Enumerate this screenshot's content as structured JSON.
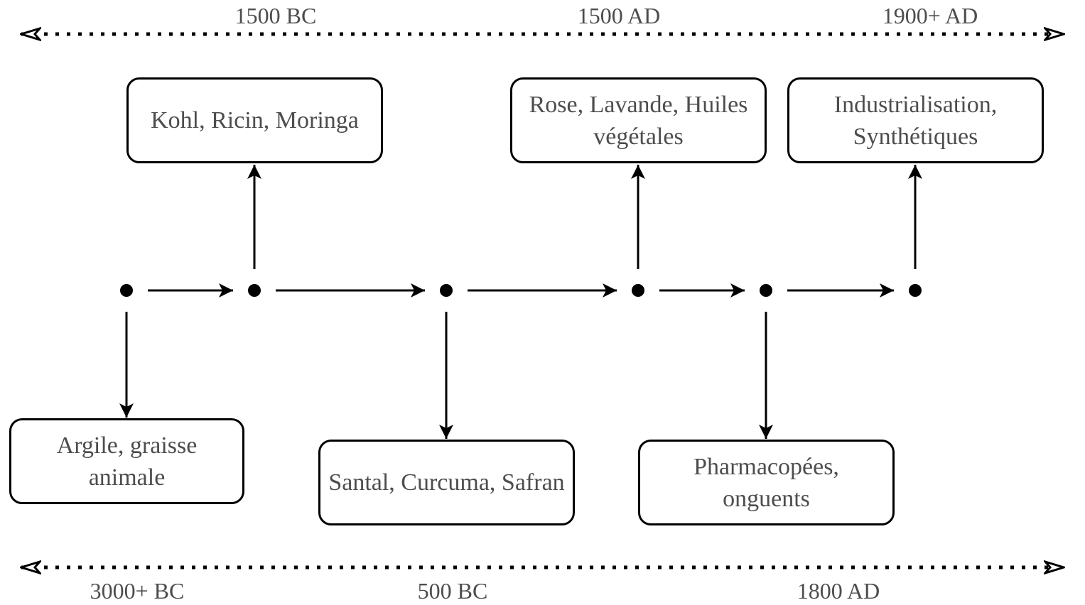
{
  "top_eras": [
    "1500 BC",
    "1500 AD",
    "1900+ AD"
  ],
  "bottom_eras": [
    "3000+ BC",
    "500 BC",
    "1800 AD"
  ],
  "boxes": {
    "kohl": "Kohl, Ricin, Moringa",
    "rose": "Rose, Lavande, Huiles végétales",
    "industrial": "Industrialisation, Synthétiques",
    "argile": "Argile, graisse animale",
    "santal": "Santal, Curcuma, Safran",
    "pharma": "Pharmacopées, onguents"
  },
  "colors": {
    "stroke": "#000000",
    "text": "#4d4d4d",
    "background": "#ffffff"
  }
}
